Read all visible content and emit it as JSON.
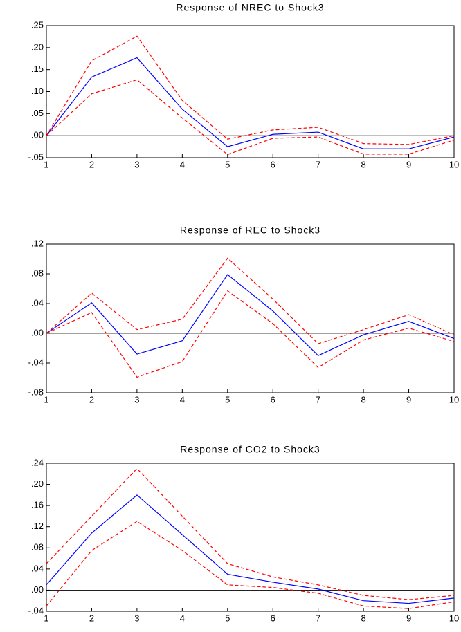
{
  "chart_data": [
    {
      "type": "line",
      "title": "Response of NREC to Shock3",
      "x": [
        1,
        2,
        3,
        4,
        5,
        6,
        7,
        8,
        9,
        10
      ],
      "xlim": [
        1,
        10
      ],
      "xticks": [
        1,
        2,
        3,
        4,
        5,
        6,
        7,
        8,
        9,
        10
      ],
      "ylim": [
        -0.05,
        0.25
      ],
      "yticks": [
        {
          "value": -0.05,
          "label": "-.05"
        },
        {
          "value": 0,
          "label": ".00"
        },
        {
          "value": 0.05,
          "label": ".05"
        },
        {
          "value": 0.1,
          "label": ".10"
        },
        {
          "value": 0.15,
          "label": ".15"
        },
        {
          "value": 0.2,
          "label": ".20"
        },
        {
          "value": 0.25,
          "label": ".25"
        }
      ],
      "series": [
        {
          "color": "#0000ff",
          "dashed": false,
          "values": [
            0,
            0.133,
            0.177,
            0.06,
            -0.025,
            0.003,
            0.008,
            -0.03,
            -0.03,
            -0.003
          ]
        },
        {
          "color": "#ff0000",
          "dashed": true,
          "values": [
            0,
            0.17,
            0.226,
            0.08,
            -0.008,
            0.013,
            0.019,
            -0.018,
            -0.02,
            0
          ]
        },
        {
          "color": "#ff0000",
          "dashed": true,
          "values": [
            0,
            0.095,
            0.127,
            0.04,
            -0.043,
            -0.006,
            -0.003,
            -0.042,
            -0.042,
            -0.01
          ]
        }
      ]
    },
    {
      "type": "line",
      "title": "Response of REC to Shock3",
      "x": [
        1,
        2,
        3,
        4,
        5,
        6,
        7,
        8,
        9,
        10
      ],
      "xlim": [
        1,
        10
      ],
      "xticks": [
        1,
        2,
        3,
        4,
        5,
        6,
        7,
        8,
        9,
        10
      ],
      "ylim": [
        -0.08,
        0.12
      ],
      "yticks": [
        {
          "value": -0.08,
          "label": "-.08"
        },
        {
          "value": -0.04,
          "label": "-.04"
        },
        {
          "value": 0,
          "label": ".00"
        },
        {
          "value": 0.04,
          "label": ".04"
        },
        {
          "value": 0.08,
          "label": ".08"
        },
        {
          "value": 0.12,
          "label": ".12"
        }
      ],
      "series": [
        {
          "color": "#0000ff",
          "dashed": false,
          "values": [
            0,
            0.041,
            -0.028,
            -0.01,
            0.079,
            0.03,
            -0.03,
            -0.002,
            0.016,
            -0.007
          ]
        },
        {
          "color": "#ff0000",
          "dashed": true,
          "values": [
            0,
            0.054,
            0.005,
            0.019,
            0.101,
            0.046,
            -0.014,
            0.005,
            0.025,
            -0.002
          ]
        },
        {
          "color": "#ff0000",
          "dashed": true,
          "values": [
            0,
            0.028,
            -0.059,
            -0.038,
            0.057,
            0.013,
            -0.046,
            -0.009,
            0.007,
            -0.011
          ]
        }
      ]
    },
    {
      "type": "line",
      "title": "Response of CO2 to Shock3",
      "x": [
        1,
        2,
        3,
        4,
        5,
        6,
        7,
        8,
        9,
        10
      ],
      "xlim": [
        1,
        10
      ],
      "xticks": [
        1,
        2,
        3,
        4,
        5,
        6,
        7,
        8,
        9,
        10
      ],
      "ylim": [
        -0.04,
        0.24
      ],
      "yticks": [
        {
          "value": -0.04,
          "label": "-.04"
        },
        {
          "value": 0,
          "label": ".00"
        },
        {
          "value": 0.04,
          "label": ".04"
        },
        {
          "value": 0.08,
          "label": ".08"
        },
        {
          "value": 0.12,
          "label": ".12"
        },
        {
          "value": 0.16,
          "label": ".16"
        },
        {
          "value": 0.2,
          "label": ".20"
        },
        {
          "value": 0.24,
          "label": ".24"
        }
      ],
      "series": [
        {
          "color": "#0000ff",
          "dashed": false,
          "values": [
            0.01,
            0.108,
            0.18,
            0.105,
            0.03,
            0.015,
            0.002,
            -0.02,
            -0.025,
            -0.015
          ]
        },
        {
          "color": "#ff0000",
          "dashed": true,
          "values": [
            0.05,
            0.14,
            0.23,
            0.14,
            0.05,
            0.025,
            0.01,
            -0.01,
            -0.018,
            -0.01
          ]
        },
        {
          "color": "#ff0000",
          "dashed": true,
          "values": [
            -0.03,
            0.075,
            0.13,
            0.075,
            0.01,
            0.005,
            -0.006,
            -0.03,
            -0.035,
            -0.022
          ]
        }
      ]
    }
  ]
}
